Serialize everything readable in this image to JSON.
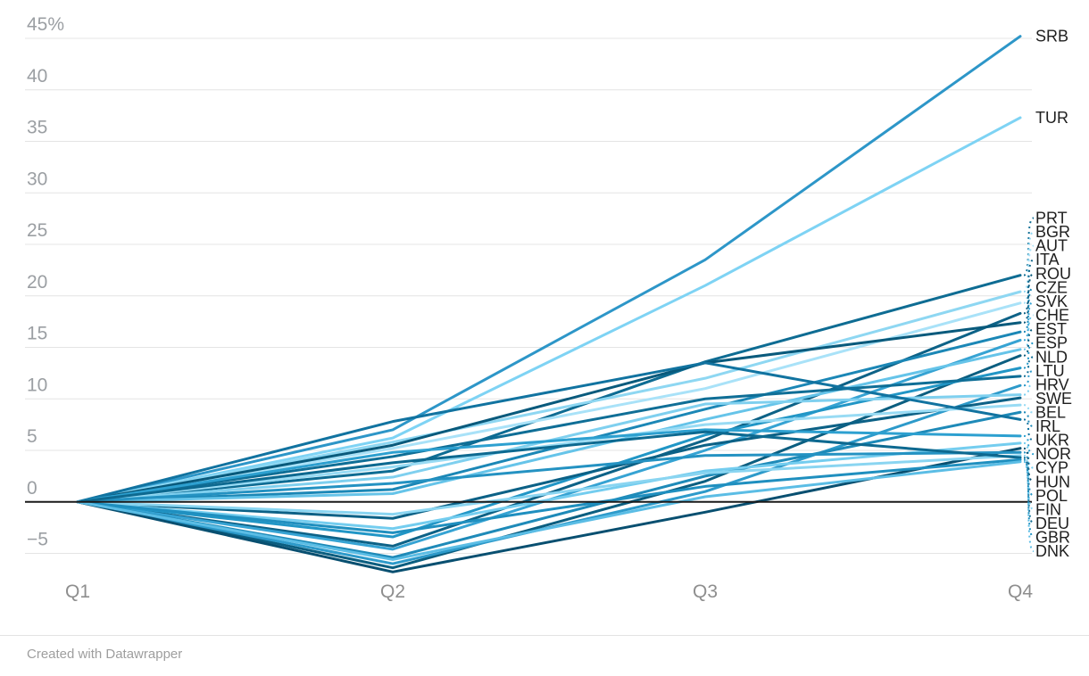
{
  "chart_data": {
    "type": "line",
    "title": "",
    "x_categories": [
      "Q1",
      "Q2",
      "Q3",
      "Q4"
    ],
    "y_axis": {
      "unit": "%",
      "ticks": [
        45,
        40,
        35,
        30,
        25,
        20,
        15,
        10,
        5,
        0,
        -5
      ],
      "min": -7.5,
      "max": 45.5,
      "zero_baseline": true,
      "grid": true
    },
    "legend_position": "right-edge-labels",
    "series": [
      {
        "code": "SRB",
        "color": "#2d96c8",
        "values": [
          0,
          7.0,
          23.5,
          45.2
        ]
      },
      {
        "code": "TUR",
        "color": "#7ed3f4",
        "values": [
          0,
          6.2,
          21.0,
          37.3
        ]
      },
      {
        "code": "PRT",
        "color": "#0e6c93",
        "values": [
          0,
          3.0,
          13.6,
          22.0
        ]
      },
      {
        "code": "BGR",
        "color": "#8ed7f2",
        "values": [
          0,
          5.8,
          12.0,
          20.4
        ]
      },
      {
        "code": "AUT",
        "color": "#a9e2f8",
        "values": [
          0,
          5.2,
          11.0,
          19.3
        ]
      },
      {
        "code": "ITA",
        "color": "#0d6287",
        "values": [
          0,
          -4.3,
          6.0,
          18.3
        ]
      },
      {
        "code": "ROU",
        "color": "#095a7c",
        "values": [
          0,
          5.5,
          13.5,
          17.4
        ]
      },
      {
        "code": "CZE",
        "color": "#1b87b6",
        "values": [
          0,
          1.2,
          9.0,
          16.5
        ]
      },
      {
        "code": "SVK",
        "color": "#36a3d3",
        "values": [
          0,
          -4.6,
          5.0,
          15.7
        ]
      },
      {
        "code": "CHE",
        "color": "#66c4e9",
        "values": [
          0,
          0.8,
          8.0,
          14.8
        ]
      },
      {
        "code": "EST",
        "color": "#0b5e80",
        "values": [
          0,
          -6.4,
          2.0,
          14.2
        ]
      },
      {
        "code": "ESP",
        "color": "#2196c6",
        "values": [
          0,
          -3.4,
          6.5,
          13.0
        ]
      },
      {
        "code": "NLD",
        "color": "#0f6e96",
        "values": [
          0,
          4.4,
          10.0,
          12.2
        ]
      },
      {
        "code": "LTU",
        "color": "#2d9aca",
        "values": [
          0,
          -6.0,
          1.0,
          11.3
        ]
      },
      {
        "code": "HRV",
        "color": "#7fd0ef",
        "values": [
          0,
          2.4,
          9.5,
          10.4
        ]
      },
      {
        "code": "SWE",
        "color": "#0c6186",
        "values": [
          0,
          -1.6,
          5.5,
          10.1
        ]
      },
      {
        "code": "BEL",
        "color": "#98dbf4",
        "values": [
          0,
          3.4,
          7.5,
          9.4
        ]
      },
      {
        "code": "IRL",
        "color": "#1e8ab8",
        "values": [
          0,
          -5.4,
          2.5,
          8.7
        ]
      },
      {
        "code": "UKR",
        "color": "#1173a0",
        "values": [
          0,
          7.8,
          13.5,
          8.0
        ]
      },
      {
        "code": "NOR",
        "color": "#2da0d0",
        "values": [
          0,
          4.8,
          7.0,
          6.4
        ]
      },
      {
        "code": "CYP",
        "color": "#74cdef",
        "values": [
          0,
          -2.6,
          3.0,
          5.7
        ]
      },
      {
        "code": "HUN",
        "color": "#084f70",
        "values": [
          0,
          -6.8,
          -1.0,
          5.2
        ]
      },
      {
        "code": "POL",
        "color": "#2492c2",
        "values": [
          0,
          1.8,
          4.5,
          4.8
        ]
      },
      {
        "code": "FIN",
        "color": "#8ad5f1",
        "values": [
          0,
          -1.2,
          2.8,
          4.5
        ]
      },
      {
        "code": "DEU",
        "color": "#0d6990",
        "values": [
          0,
          3.8,
          6.8,
          4.3
        ]
      },
      {
        "code": "GBR",
        "color": "#1f8fbf",
        "values": [
          0,
          -3.0,
          1.5,
          4.1
        ]
      },
      {
        "code": "DNK",
        "color": "#5bbde5",
        "values": [
          0,
          -5.6,
          0.5,
          3.9
        ]
      }
    ]
  },
  "footer": {
    "credit": "Created with Datawrapper"
  },
  "colors": {
    "background": "#ffffff",
    "grid": "#e4e4e4",
    "zero_line": "#1a1a1a",
    "tick_text": "#9b9fa3",
    "x_tick_text": "#8e8e8e",
    "label_text": "#1f1f1f",
    "footer_text": "#9e9e9e"
  }
}
